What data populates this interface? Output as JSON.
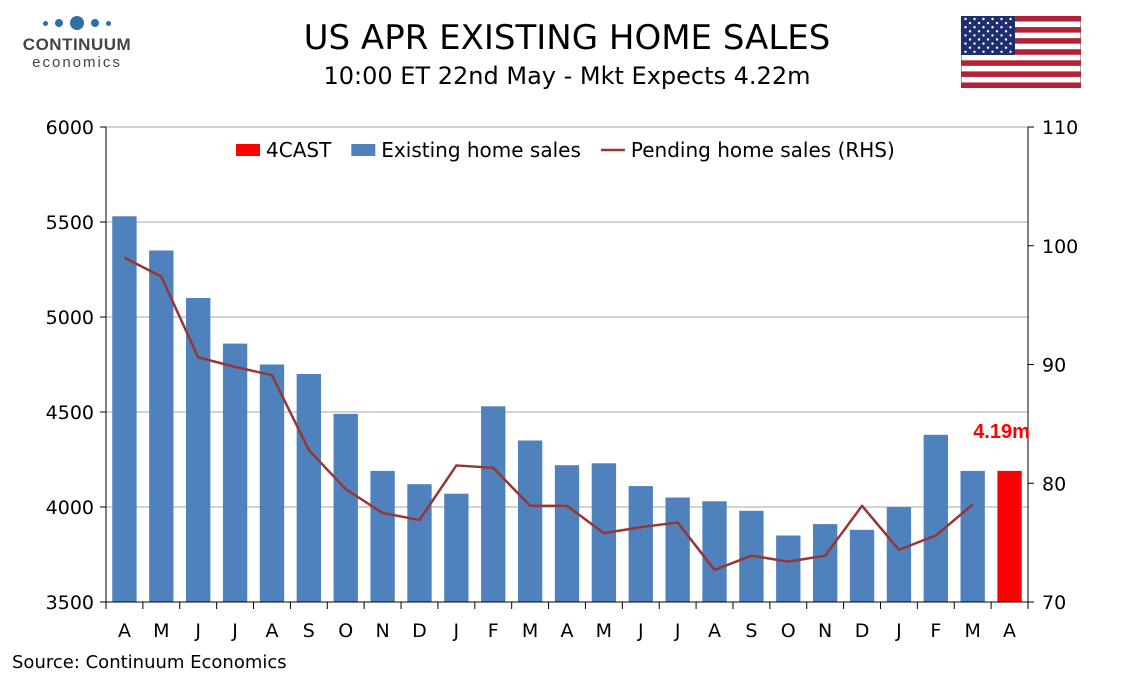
{
  "header": {
    "logo_name": "CONTINUUM",
    "logo_sub": "economics",
    "title": "US APR EXISTING HOME SALES",
    "subtitle": "10:00 ET 22nd May - Mkt Expects 4.22m",
    "flag_icon": "us-flag-icon"
  },
  "footer": {
    "source": "Source: Continuum Economics"
  },
  "colors": {
    "bar": "#4f81bd",
    "forecast": "#ff0000",
    "line": "#953735",
    "grid": "#a6a6a6",
    "annotation": "#ff0000",
    "logo": "#2f6fa7"
  },
  "chart_data": {
    "type": "bar",
    "categories": [
      "A",
      "M",
      "J",
      "J",
      "A",
      "S",
      "O",
      "N",
      "D",
      "J",
      "F",
      "M",
      "A",
      "M",
      "J",
      "J",
      "A",
      "S",
      "O",
      "N",
      "D",
      "J",
      "F",
      "M",
      "A"
    ],
    "series": [
      {
        "name": "4CAST",
        "type": "bar",
        "axis": "left",
        "color": "#ff0000",
        "values": [
          null,
          null,
          null,
          null,
          null,
          null,
          null,
          null,
          null,
          null,
          null,
          null,
          null,
          null,
          null,
          null,
          null,
          null,
          null,
          null,
          null,
          null,
          null,
          null,
          4190
        ]
      },
      {
        "name": "Existing home sales",
        "type": "bar",
        "axis": "left",
        "color": "#4f81bd",
        "values": [
          5530,
          5350,
          5100,
          4860,
          4750,
          4700,
          4490,
          4190,
          4120,
          4070,
          4530,
          4350,
          4220,
          4230,
          4110,
          4050,
          4030,
          3980,
          3850,
          3910,
          3880,
          4000,
          4380,
          4190,
          null
        ]
      },
      {
        "name": "Pending home sales (RHS)",
        "type": "line",
        "axis": "right",
        "color": "#953735",
        "values": [
          99.0,
          97.4,
          90.6,
          89.8,
          89.1,
          82.8,
          79.5,
          77.5,
          76.9,
          81.5,
          81.3,
          78.1,
          78.1,
          75.8,
          76.3,
          76.7,
          72.7,
          73.9,
          73.4,
          73.9,
          78.1,
          74.4,
          75.6,
          78.2,
          null
        ]
      }
    ],
    "y_left": {
      "ylim": [
        3500,
        6000
      ],
      "ticks": [
        3500,
        4000,
        4500,
        5000,
        5500,
        6000
      ]
    },
    "y_right": {
      "ylim": [
        70,
        110
      ],
      "ticks": [
        70,
        80,
        90,
        100,
        110
      ]
    },
    "annotation": {
      "text": "4.19m",
      "category_index": 24,
      "value": 4190
    },
    "legend": {
      "position": "top-center"
    },
    "grid": true,
    "xlabel": "",
    "ylabel": ""
  }
}
